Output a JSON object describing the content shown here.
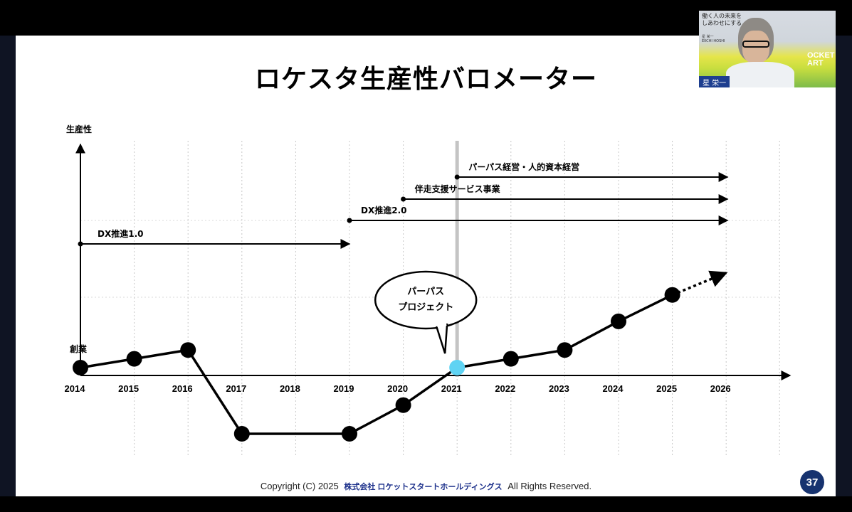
{
  "slide": {
    "title": "ロケスタ生産性バロメーター",
    "footer_copyright": "Copyright (C) 2025",
    "footer_company": "株式会社 ロケットスタートホールディングス",
    "footer_rights": "All Rights Reserved.",
    "page_number": "37"
  },
  "video": {
    "name_tag": "星 栄一",
    "book_title_line1": "働く人の未来を",
    "book_title_line2": "しあわせにする",
    "book_author": "星 栄一",
    "book_author_en": "EIICHI HOSHI",
    "background_logo_line1": "OCKET",
    "background_logo_line2": "ART"
  },
  "chart_data": {
    "type": "line",
    "ylabel": "生産性",
    "x": [
      "2014",
      "2015",
      "2016",
      "2017",
      "2018",
      "2019",
      "2020",
      "2021",
      "2022",
      "2023",
      "2024",
      "2025",
      "2026"
    ],
    "series": [
      {
        "values": [
          {
            "x": "2014",
            "y": 0
          },
          {
            "x": "2015",
            "y": 0.4
          },
          {
            "x": "2016",
            "y": 0.8
          },
          {
            "x": "2017",
            "y": -3
          },
          {
            "x": "2019",
            "y": -3
          },
          {
            "x": "2020",
            "y": -1.7
          },
          {
            "x": "2021",
            "y": 0
          },
          {
            "x": "2022",
            "y": 0.4
          },
          {
            "x": "2023",
            "y": 0.8
          },
          {
            "x": "2024",
            "y": 2.1
          },
          {
            "x": "2025",
            "y": 3.3
          }
        ],
        "projection": [
          {
            "x": "2025",
            "y": 3.3
          },
          {
            "x": "2026",
            "y": 4.3
          }
        ]
      }
    ],
    "highlight": {
      "x": "2021",
      "color": "#5fd3f3"
    },
    "annotations": [
      {
        "x": "2014",
        "label": "創業"
      },
      {
        "x": "2021",
        "label_line1": "パーパス",
        "label_line2": "プロジェクト"
      }
    ],
    "initiatives": [
      {
        "label": "DX推進1.0",
        "start": "2014",
        "end": "2019"
      },
      {
        "label": "DX推進2.0",
        "start": "2019",
        "end": "2026"
      },
      {
        "label": "伴走支援サービス事業",
        "start": "2020",
        "end": "2026"
      },
      {
        "label": "パーパス経営・人的資本経営",
        "start": "2021",
        "end": "2026"
      }
    ],
    "grid": "dotted vertical at each year",
    "marker_color": "#000000",
    "line_color": "#000000"
  }
}
